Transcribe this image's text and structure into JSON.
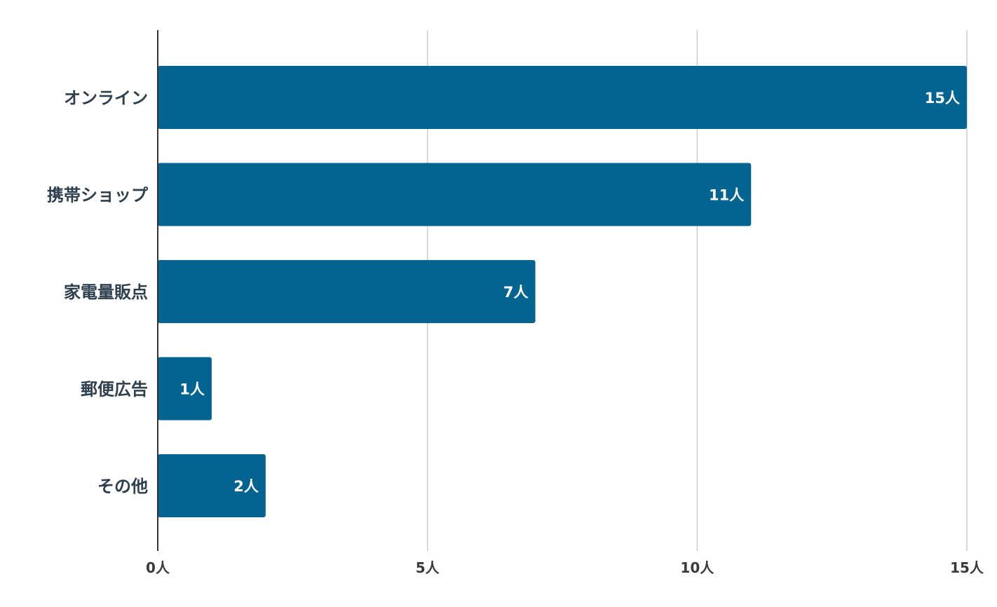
{
  "chart_data": {
    "type": "bar",
    "orientation": "horizontal",
    "categories": [
      "オンライン",
      "携帯ショップ",
      "家電量販点",
      "郵便広告",
      "その他"
    ],
    "values": [
      15,
      11,
      7,
      1,
      2
    ],
    "value_labels": [
      "15人",
      "11人",
      "7人",
      "1人",
      "2人"
    ],
    "xlim": [
      0,
      15
    ],
    "x_ticks": [
      0,
      5,
      10,
      15
    ],
    "x_tick_labels": [
      "0人",
      "5人",
      "10人",
      "15人"
    ],
    "grid": "vertical",
    "bar_color": "#036391"
  }
}
